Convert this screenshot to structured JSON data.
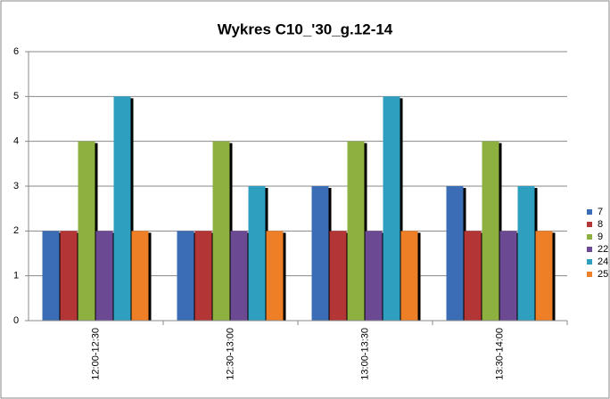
{
  "chart_data": {
    "type": "bar",
    "title": "Wykres C10_'30_g.12-14",
    "categories": [
      "12:00-12:30",
      "12:30-13:00",
      "13:00-13:30",
      "13:30-14:00"
    ],
    "series": [
      {
        "name": "7",
        "color": "#3a6db5",
        "values": [
          2,
          2,
          3,
          3
        ]
      },
      {
        "name": "8",
        "color": "#b43535",
        "values": [
          2,
          2,
          2,
          2
        ]
      },
      {
        "name": "9",
        "color": "#8db040",
        "values": [
          4,
          4,
          4,
          4
        ]
      },
      {
        "name": "22",
        "color": "#6c4a93",
        "values": [
          2,
          2,
          2,
          2
        ]
      },
      {
        "name": "24",
        "color": "#2e9fbf",
        "values": [
          5,
          3,
          5,
          3
        ]
      },
      {
        "name": "25",
        "color": "#ee7f26",
        "values": [
          2,
          2,
          2,
          2
        ]
      }
    ],
    "ylim": [
      0,
      6
    ],
    "yticks": [
      0,
      1,
      2,
      3,
      4,
      5,
      6
    ],
    "grid": true,
    "legend": "right"
  }
}
